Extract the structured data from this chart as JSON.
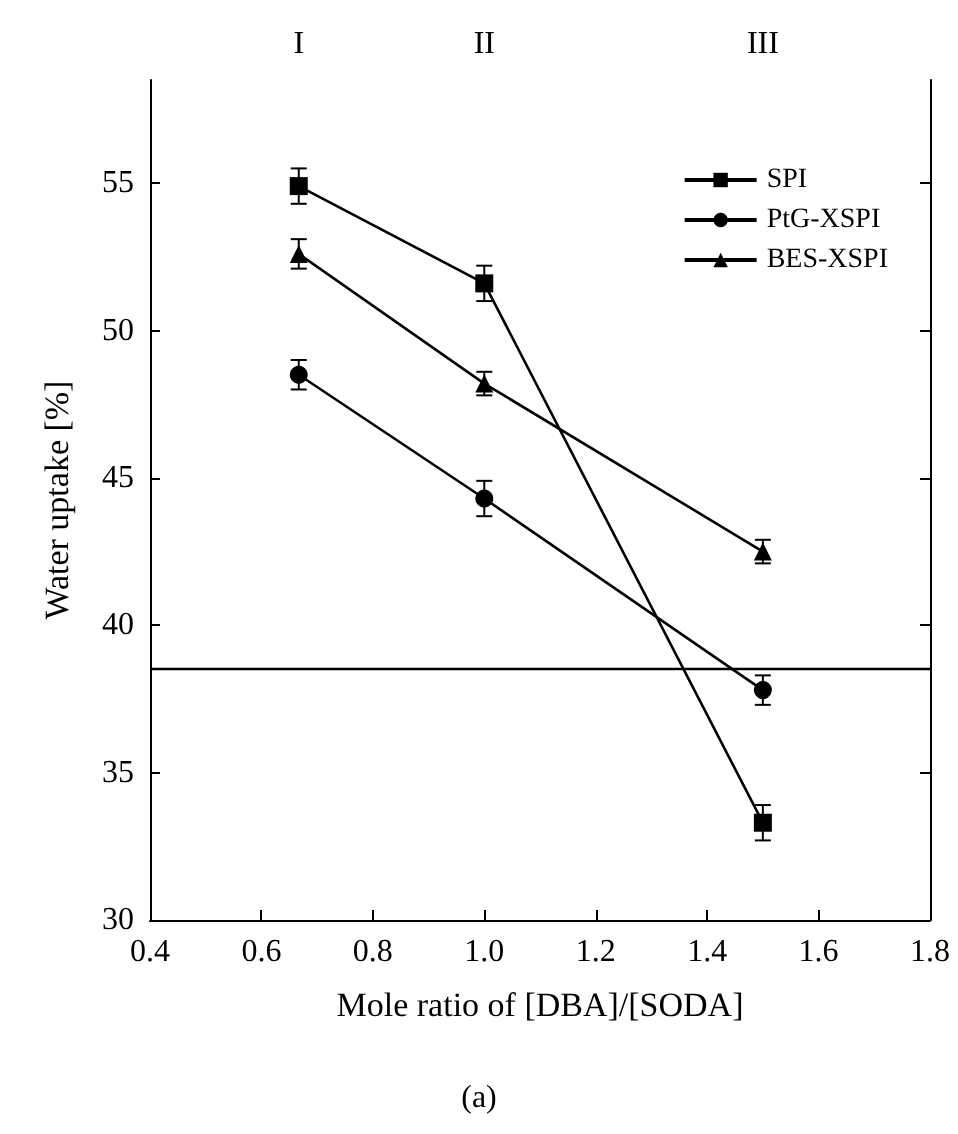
{
  "chart_data": {
    "type": "line",
    "xlabel": "Mole ratio of [DBA]/[SODA]",
    "ylabel": "Water uptake [%]",
    "xlim": [
      0.4,
      1.8
    ],
    "xticks": [
      0.4,
      0.6,
      0.8,
      {
        "value": 1,
        "label": "1.0"
      },
      1.2,
      1.4,
      1.6,
      1.8
    ],
    "ylim": [
      30,
      58.5
    ],
    "yticks": [
      30,
      35,
      40,
      45,
      50,
      55
    ],
    "x": [
      0.667,
      1.0,
      1.5
    ],
    "series": [
      {
        "name": "SPI",
        "color": "#000000",
        "marker": "square",
        "values": [
          54.9,
          51.6,
          33.3
        ],
        "errors": [
          0.6,
          0.6,
          0.6
        ]
      },
      {
        "name": "PtG-XSPI",
        "color": "#000000",
        "marker": "circle",
        "values": [
          48.5,
          44.3,
          37.8
        ],
        "errors": [
          0.5,
          0.6,
          0.5
        ]
      },
      {
        "name": "BES-XSPI",
        "color": "#000000",
        "marker": "triangle",
        "values": [
          52.6,
          48.2,
          42.5
        ],
        "errors": [
          0.5,
          0.4,
          0.4
        ]
      }
    ],
    "ref_lines": [
      {
        "axis": "y",
        "value": 38.5,
        "color": "#000000"
      }
    ],
    "annotations": [
      "I",
      "II",
      "III",
      "(a)"
    ],
    "legend": "top right",
    "grid": false,
    "line_style": "solid"
  }
}
